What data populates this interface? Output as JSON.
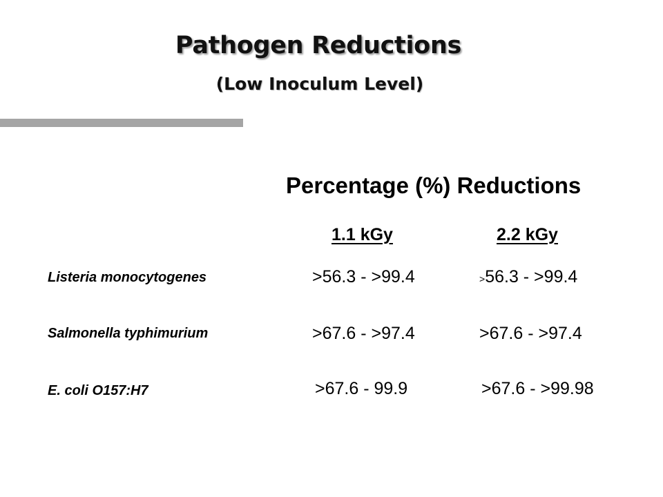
{
  "slide": {
    "title": "Pathogen Reductions",
    "subtitle": "(Low Inoculum Level)"
  },
  "table": {
    "heading": "Percentage (%) Reductions",
    "columns": [
      "1.1 kGy",
      "2.2 kGy"
    ],
    "rows": [
      {
        "organism": "Listeria monocytogenes",
        "dose_1_1": ">56.3 - >99.4",
        "dose_2_2_prefix": ">",
        "dose_2_2": "56.3 - >99.4"
      },
      {
        "organism": "Salmonella typhimurium",
        "dose_1_1": ">67.6 - >97.4",
        "dose_2_2": ">67.6 - >97.4"
      },
      {
        "organism": "E. coli O157:H7",
        "dose_1_1": ">67.6 - 99.9",
        "dose_2_2": ">67.6 - >99.98"
      }
    ]
  }
}
